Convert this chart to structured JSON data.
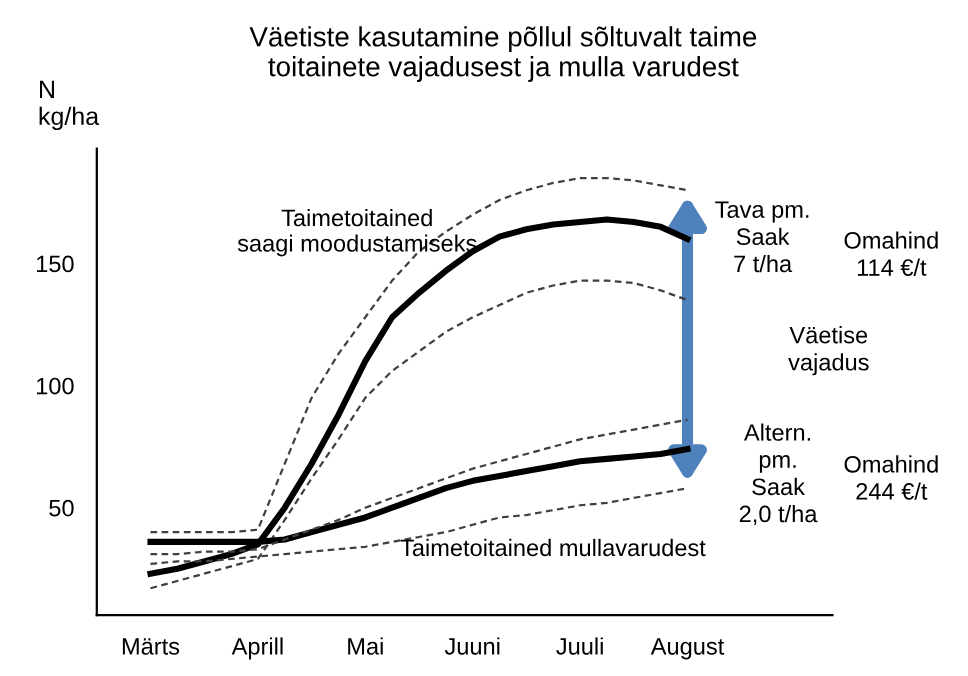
{
  "chart_data": {
    "type": "line",
    "title": "Väetiste kasutamine põllul sõltuvalt taime\ntoitainete vajadusest ja mulla varudest",
    "ylabel": "N\nkg/ha",
    "categories": [
      "Märts",
      null,
      null,
      null,
      "Aprill",
      null,
      null,
      null,
      "Mai",
      null,
      null,
      null,
      "Juuni",
      null,
      null,
      null,
      "Juuli",
      null,
      null,
      null,
      "August"
    ],
    "ylim": [
      6,
      197
    ],
    "yticks": [
      50,
      100,
      150
    ],
    "grid": false,
    "legend": false,
    "marker": "none",
    "series": [
      {
        "name": "Taimetoitained saagi moodustamiseks",
        "color": "#000000",
        "line_style": "solid",
        "values": [
          23,
          25,
          28,
          31,
          35,
          50,
          68,
          88,
          110,
          128,
          138,
          147,
          155,
          161,
          164,
          166,
          167,
          168,
          167,
          165,
          160
        ]
      },
      {
        "color": "#404040",
        "line_style": "dashed",
        "values": [
          40,
          40,
          40,
          40,
          41,
          68,
          95,
          113,
          128,
          143,
          155,
          163,
          170,
          176,
          180,
          183,
          185,
          185,
          184,
          182,
          180
        ]
      },
      {
        "color": "#404040",
        "line_style": "dashed",
        "values": [
          17,
          20,
          23,
          26,
          29,
          45,
          62,
          78,
          95,
          106,
          114,
          122,
          128,
          133,
          138,
          141,
          143,
          143,
          142,
          139,
          135
        ]
      },
      {
        "name": "Taimetoitained mullavarudest",
        "color": "#000000",
        "line_style": "solid",
        "values": [
          36,
          36,
          36,
          36,
          36,
          37,
          40,
          43,
          46,
          50,
          54,
          58,
          61,
          63,
          65,
          67,
          69,
          70,
          71,
          72,
          74
        ]
      },
      {
        "color": "#404040",
        "line_style": "dashed",
        "values": [
          31,
          31,
          32,
          32,
          33,
          37,
          41,
          45,
          50,
          54,
          58,
          62,
          66,
          69,
          72,
          75,
          78,
          80,
          82,
          84,
          86
        ]
      },
      {
        "color": "#404040",
        "line_style": "dashed",
        "values": [
          27,
          28,
          28,
          29,
          30,
          31,
          32,
          33,
          34,
          36,
          38,
          40,
          43,
          46,
          47,
          49,
          51,
          52,
          54,
          56,
          58
        ]
      }
    ],
    "annotations": [
      "Tava pm.\nSaak\n7 t/ha",
      "Omahind\n114 €/t",
      "Väetise\nvajadus",
      "Altern.\npm.\nSaak\n2,0 t/ha",
      "Omahind\n244 €/t"
    ]
  }
}
